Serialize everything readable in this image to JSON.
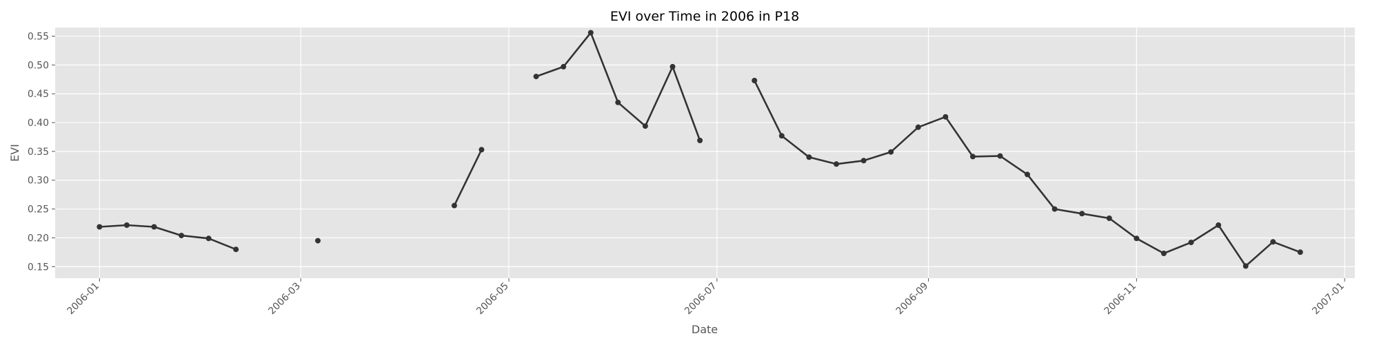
{
  "chart_data": {
    "type": "line",
    "title": "EVI over Time in 2006 in P18",
    "xlabel": "Date",
    "ylabel": "EVI",
    "grid": true,
    "x_ticks": [
      "2006-01",
      "2006-03",
      "2006-05",
      "2006-07",
      "2006-09",
      "2006-11",
      "2007-01"
    ],
    "y_ticks": [
      "0.15",
      "0.20",
      "0.25",
      "0.30",
      "0.35",
      "0.40",
      "0.45",
      "0.50",
      "0.55"
    ],
    "xlim": [
      "2005-12-19",
      "2007-01-04"
    ],
    "ylim": [
      0.13,
      0.565
    ],
    "colors": {
      "line": "#333333",
      "plot_background": "#e5e5e5",
      "grid": "#ffffff",
      "text": "#555555"
    },
    "series": [
      {
        "points": [
          [
            "2006-01-01",
            0.219
          ],
          [
            "2006-01-09",
            0.222
          ],
          [
            "2006-01-17",
            0.219
          ],
          [
            "2006-01-25",
            0.204
          ],
          [
            "2006-02-02",
            0.199
          ],
          [
            "2006-02-10",
            0.18
          ],
          [
            "2006-02-18",
            null
          ],
          [
            "2006-02-26",
            null
          ],
          [
            "2006-03-06",
            0.195
          ],
          [
            "2006-03-14",
            null
          ],
          [
            "2006-03-22",
            null
          ],
          [
            "2006-03-30",
            null
          ],
          [
            "2006-04-07",
            null
          ],
          [
            "2006-04-15",
            0.256
          ],
          [
            "2006-04-23",
            0.353
          ],
          [
            "2006-05-01",
            null
          ],
          [
            "2006-05-09",
            0.48
          ],
          [
            "2006-05-17",
            0.497
          ],
          [
            "2006-05-25",
            0.556
          ],
          [
            "2006-06-02",
            0.435
          ],
          [
            "2006-06-10",
            0.394
          ],
          [
            "2006-06-18",
            0.497
          ],
          [
            "2006-06-26",
            0.369
          ],
          [
            "2006-07-04",
            null
          ],
          [
            "2006-07-12",
            0.473
          ],
          [
            "2006-07-20",
            0.377
          ],
          [
            "2006-07-28",
            0.34
          ],
          [
            "2006-08-05",
            0.328
          ],
          [
            "2006-08-13",
            0.334
          ],
          [
            "2006-08-21",
            0.349
          ],
          [
            "2006-08-29",
            0.392
          ],
          [
            "2006-09-06",
            0.41
          ],
          [
            "2006-09-14",
            0.341
          ],
          [
            "2006-09-22",
            0.342
          ],
          [
            "2006-09-30",
            0.31
          ],
          [
            "2006-10-08",
            0.25
          ],
          [
            "2006-10-16",
            0.242
          ],
          [
            "2006-10-24",
            0.234
          ],
          [
            "2006-11-01",
            0.199
          ],
          [
            "2006-11-09",
            0.173
          ],
          [
            "2006-11-17",
            0.192
          ],
          [
            "2006-11-25",
            0.222
          ],
          [
            "2006-12-03",
            0.151
          ],
          [
            "2006-12-11",
            0.193
          ],
          [
            "2006-12-19",
            0.175
          ]
        ]
      }
    ]
  }
}
